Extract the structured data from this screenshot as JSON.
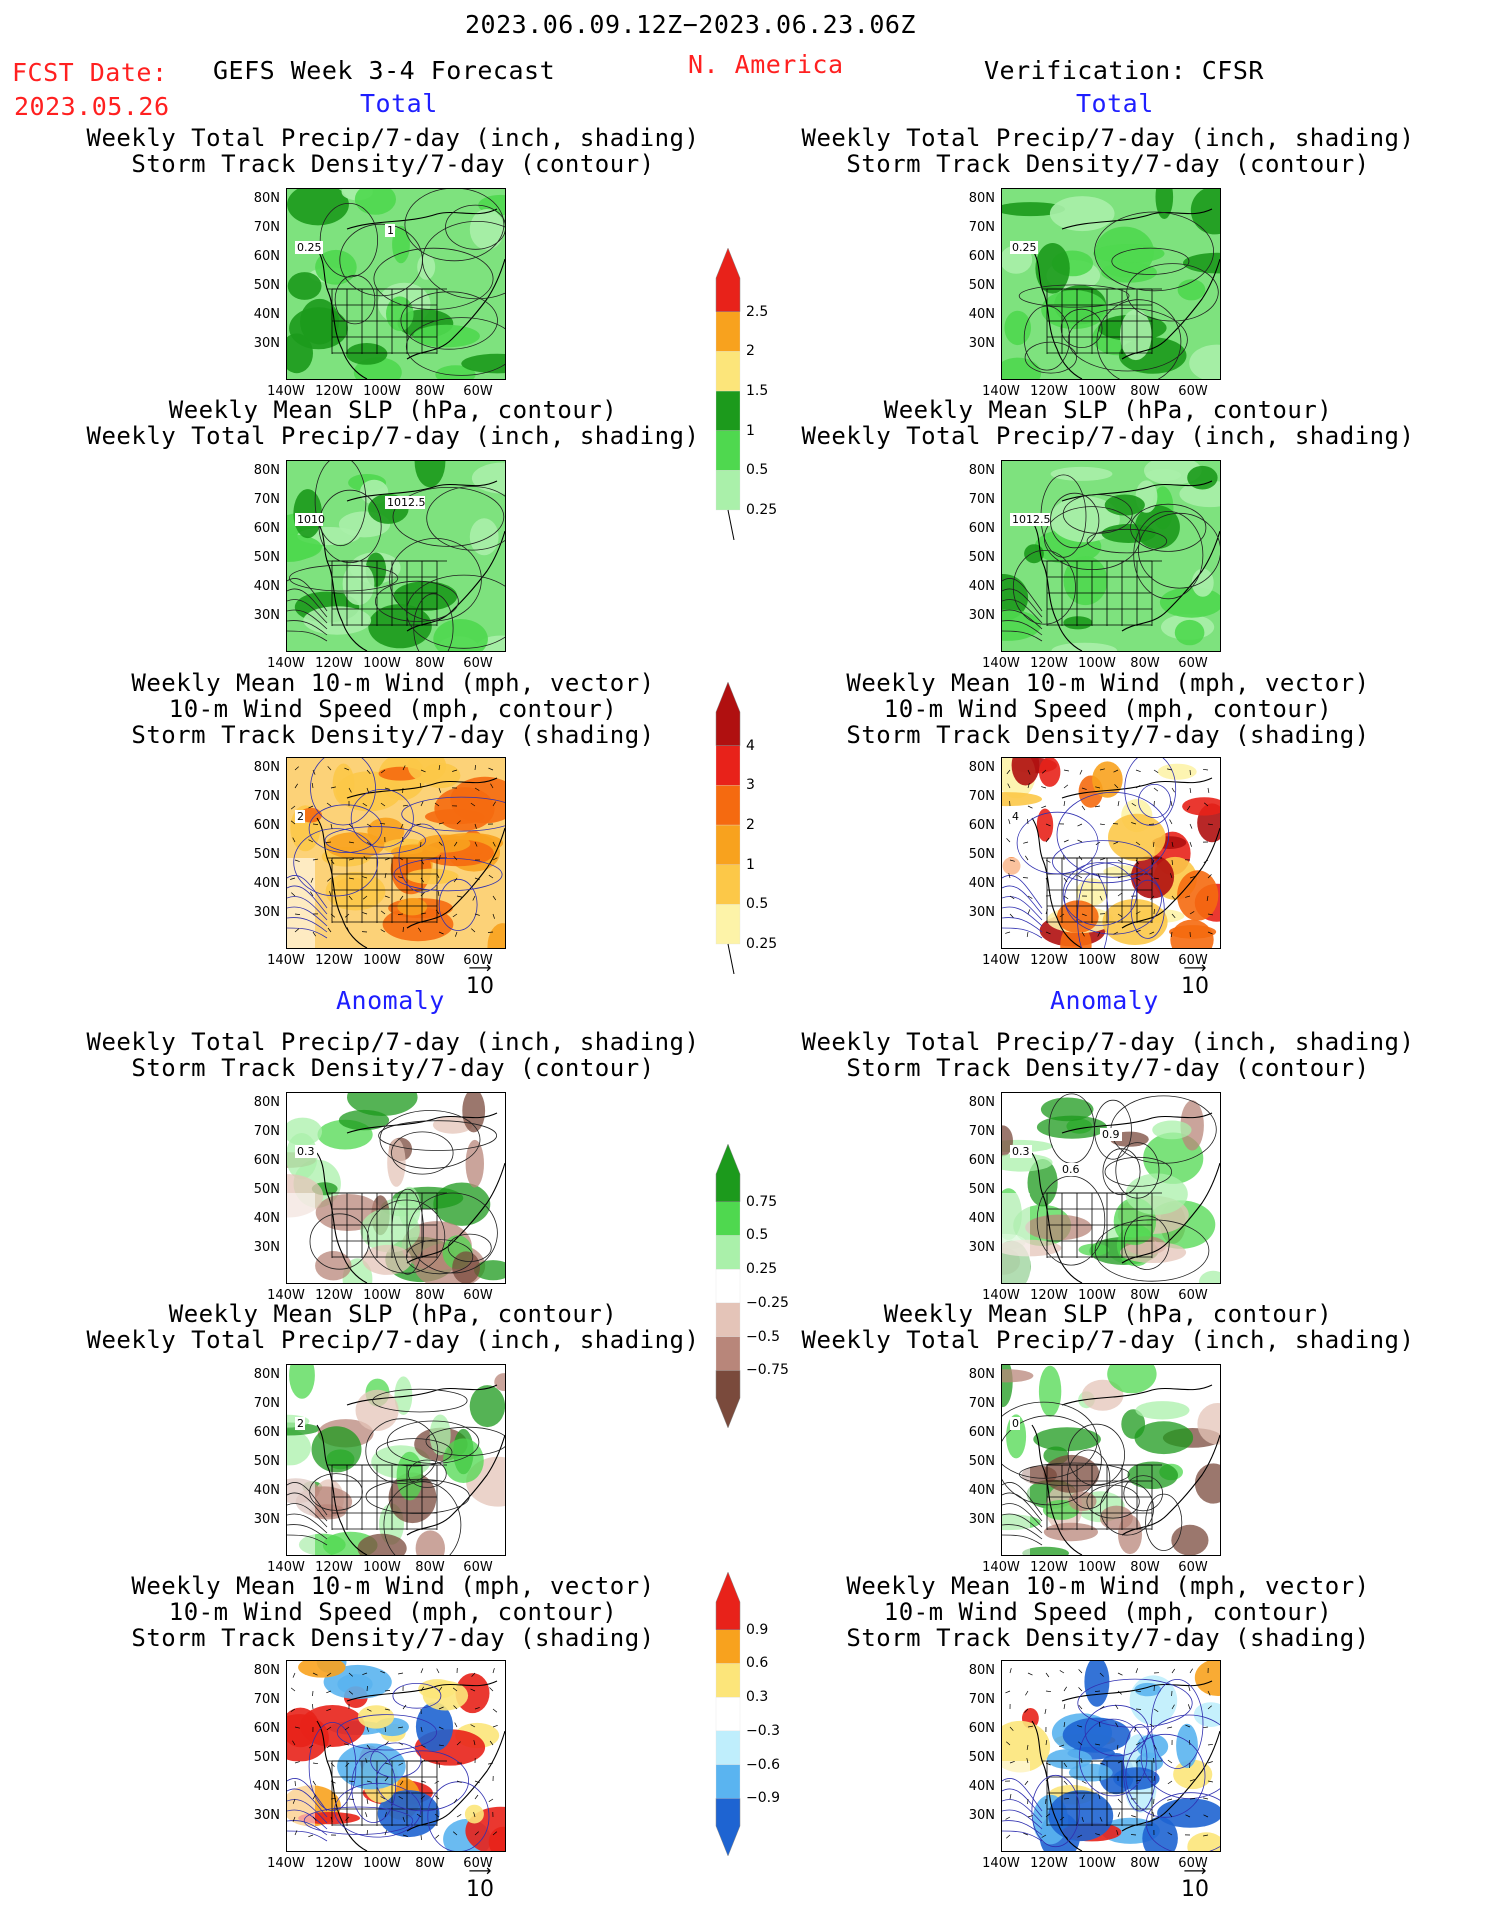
{
  "header": {
    "period": "2023.06.09.12Z−2023.06.23.06Z",
    "fcst_date_label": "FCST Date:",
    "fcst_date": "2023.05.26",
    "forecast_title": "GEFS Week 3-4 Forecast",
    "region": "N. America",
    "verification": "Verification: CFSR"
  },
  "sections": {
    "total": "Total",
    "anomaly": "Anomaly"
  },
  "titles": {
    "precip_storm": [
      "Weekly Total Precip/7-day (inch, shading)",
      "Storm Track Density/7-day (contour)"
    ],
    "slp_precip": [
      "Weekly Mean SLP (hPa, contour)",
      "Weekly Total Precip/7-day (inch, shading)"
    ],
    "wind_storm": [
      "Weekly Mean 10-m Wind (mph, vector)",
      "10-m Wind Speed (mph, contour)",
      "Storm Track Density/7-day (shading)"
    ]
  },
  "axes": {
    "lat_ticks": [
      "80N",
      "70N",
      "60N",
      "50N",
      "40N",
      "30N"
    ],
    "lon_ticks": [
      "140W",
      "120W",
      "100W",
      "80W",
      "60W"
    ]
  },
  "vector_ref": "10",
  "colorbars": {
    "total_precip": {
      "labels": [
        "2.5",
        "2",
        "1.5",
        "1",
        "0.5",
        "0.25"
      ],
      "colors": [
        "#e8221a",
        "#f8a21e",
        "#fce57a",
        "#1c9a1c",
        "#4fd84f",
        "#aaf0aa"
      ]
    },
    "total_storm": {
      "labels": [
        "4",
        "3",
        "2",
        "1",
        "0.5",
        "0.25"
      ],
      "colors": [
        "#b01010",
        "#e8221a",
        "#f56a10",
        "#f8a21e",
        "#fcc848",
        "#fdf3a8"
      ]
    },
    "anom_precip": {
      "labels": [
        "0.75",
        "0.5",
        "0.25",
        "−0.25",
        "−0.5",
        "−0.75"
      ],
      "colors": [
        "#1c9a1c",
        "#4fd84f",
        "#aaf0aa",
        "#ffffff",
        "#e4c4b8",
        "#b8867a",
        "#7a4a3c"
      ]
    },
    "anom_storm": {
      "labels": [
        "0.9",
        "0.6",
        "0.3",
        "−0.3",
        "−0.6",
        "−0.9"
      ],
      "colors": [
        "#e8221a",
        "#f8a21e",
        "#fce57a",
        "#ffffff",
        "#bfeefc",
        "#5ab4f0",
        "#1e64d2"
      ]
    }
  },
  "panel_labels": {
    "fc_total_precip": [
      "0.25",
      "1"
    ],
    "ver_total_precip": [
      "0.25"
    ],
    "fc_total_slp": [
      "1010",
      "1012.5"
    ],
    "ver_total_slp": [
      "1012.5"
    ],
    "fc_total_wind": [
      "2"
    ],
    "ver_total_wind": [
      "4"
    ],
    "fc_anom_precip": [
      "0.3"
    ],
    "ver_anom_precip": [
      "0.3",
      "0.9",
      "0.6"
    ],
    "fc_anom_slp": [
      "2"
    ],
    "ver_anom_slp": [
      "0"
    ]
  }
}
